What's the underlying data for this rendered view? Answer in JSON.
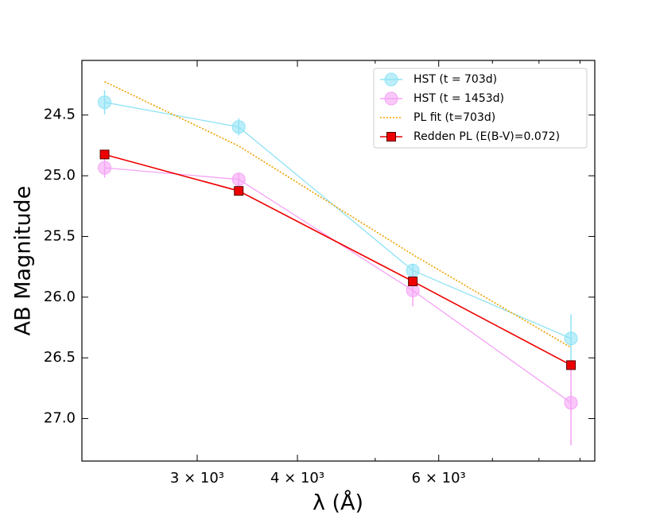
{
  "chart_data": {
    "type": "line",
    "xlabel": "λ (Å)",
    "ylabel": "AB Magnitude",
    "xscale": "log",
    "xlim": [
      2155,
      9390
    ],
    "ylim": [
      27.35,
      24.05
    ],
    "xticks": [
      {
        "value": 3000,
        "label": "3 × 10³"
      },
      {
        "value": 4000,
        "label": "4 × 10³"
      },
      {
        "value": 6000,
        "label": "6 × 10³"
      }
    ],
    "xminorticks": [
      5000,
      7000,
      8000,
      9000
    ],
    "yticks": [
      {
        "value": 24.5,
        "label": "24.5"
      },
      {
        "value": 25.0,
        "label": "25.0"
      },
      {
        "value": 25.5,
        "label": "25.5"
      },
      {
        "value": 26.0,
        "label": "26.0"
      },
      {
        "value": 26.5,
        "label": "26.5"
      },
      {
        "value": 27.0,
        "label": "27.0"
      }
    ],
    "legend": "upper right",
    "series": [
      {
        "name": "HST (t = 703d)",
        "color": "#8fe3f5",
        "marker": "circle",
        "x": [
          2300,
          3380,
          5570,
          8770
        ],
        "values": [
          24.395,
          24.598,
          25.78,
          26.34
        ],
        "errors": [
          0.1,
          0.07,
          0.05,
          0.2
        ]
      },
      {
        "name": "HST (t = 1453d)",
        "color": "#f5a3f5",
        "marker": "circle",
        "x": [
          2300,
          3380,
          5570,
          8770
        ],
        "values": [
          24.935,
          25.03,
          25.945,
          26.87
        ],
        "errors": [
          0.08,
          0.05,
          0.13,
          0.35
        ]
      },
      {
        "name": "PL fit (t=703d)",
        "color": "#f0a000",
        "marker": "dotted",
        "x": [
          2300,
          3380,
          5570,
          8770
        ],
        "values": [
          24.225,
          24.755,
          25.65,
          26.415
        ]
      },
      {
        "name": "Redden PL (E(B-V)=0.072)",
        "color": "#ee0000",
        "marker": "square",
        "x": [
          2300,
          3380,
          5570,
          8770
        ],
        "values": [
          24.825,
          25.125,
          25.87,
          26.56
        ]
      }
    ]
  }
}
